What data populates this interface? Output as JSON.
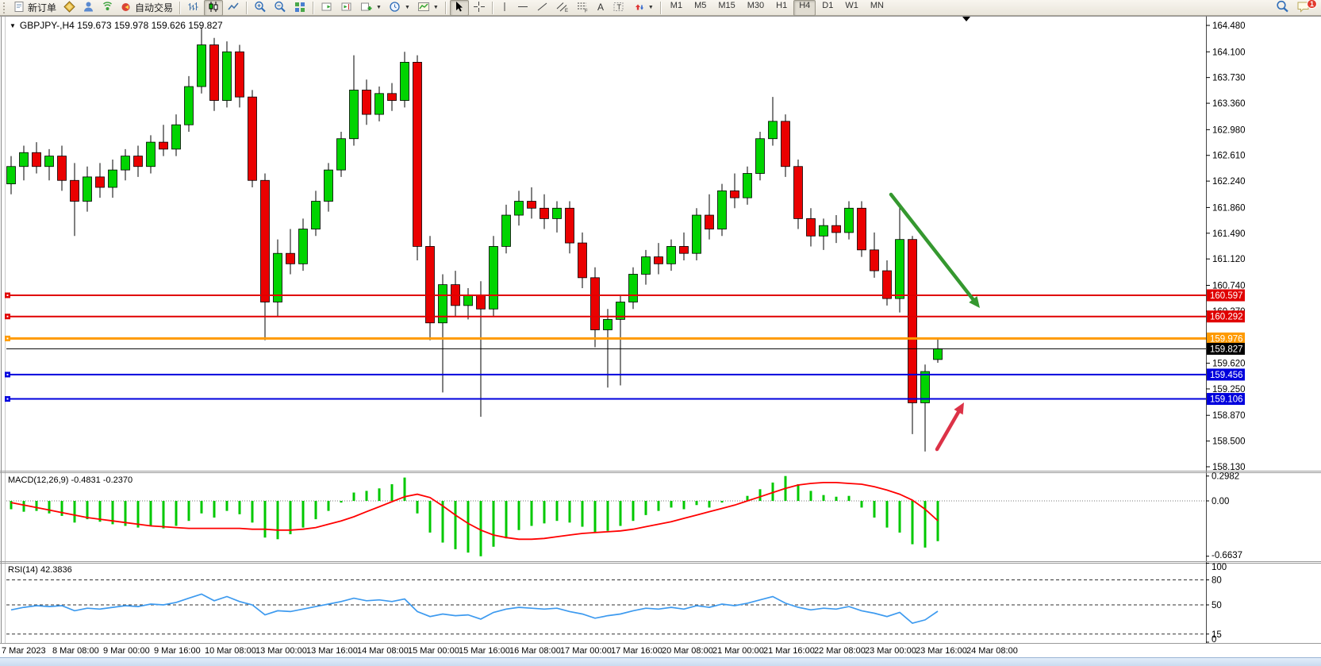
{
  "toolbar": {
    "new_order_label": "新订单",
    "autotrading_label": "自动交易",
    "timeframes": [
      "M1",
      "M5",
      "M15",
      "M30",
      "H1",
      "H4",
      "D1",
      "W1",
      "MN"
    ],
    "active_timeframe": "H4",
    "notification_badge": "1"
  },
  "chart": {
    "title": "GBPJPY-,H4  159.673 159.978 159.626 159.827",
    "symbol": "GBPJPY-",
    "period": "H4",
    "open": "159.673",
    "high": "159.978",
    "low": "159.626",
    "close": "159.827",
    "bull_color": "#00d400",
    "bear_color": "#ea0000",
    "price_ticks": [
      "164.480",
      "164.100",
      "163.730",
      "163.360",
      "162.980",
      "162.610",
      "162.240",
      "161.860",
      "161.490",
      "161.120",
      "160.740",
      "160.370",
      "159.620",
      "159.250",
      "158.870",
      "158.500",
      "158.130"
    ],
    "levels": [
      {
        "price": "160.597",
        "value": 160.597,
        "color": "#e00000",
        "width": 2,
        "handle": true
      },
      {
        "price": "160.292",
        "value": 160.292,
        "color": "#e00000",
        "width": 2,
        "handle": true
      },
      {
        "price": "159.976",
        "value": 159.976,
        "color": "#ff9a00",
        "width": 3,
        "handle": true
      },
      {
        "price": "159.827",
        "value": 159.827,
        "color": "#000000",
        "width": 1,
        "handle": false
      },
      {
        "price": "159.456",
        "value": 159.456,
        "color": "#0000dd",
        "width": 2,
        "handle": true
      },
      {
        "price": "159.106",
        "value": 159.106,
        "color": "#0000dd",
        "width": 2,
        "handle": true
      }
    ],
    "candles": [
      [
        162.2,
        162.6,
        162.05,
        162.45
      ],
      [
        162.45,
        162.75,
        162.25,
        162.65
      ],
      [
        162.65,
        162.8,
        162.35,
        162.45
      ],
      [
        162.45,
        162.7,
        162.25,
        162.6
      ],
      [
        162.6,
        162.75,
        162.1,
        162.25
      ],
      [
        162.25,
        162.5,
        161.45,
        161.95
      ],
      [
        161.95,
        162.45,
        161.8,
        162.3
      ],
      [
        162.3,
        162.5,
        162.0,
        162.15
      ],
      [
        162.15,
        162.55,
        162.0,
        162.4
      ],
      [
        162.4,
        162.7,
        162.25,
        162.6
      ],
      [
        162.6,
        162.75,
        162.3,
        162.45
      ],
      [
        162.45,
        162.9,
        162.35,
        162.8
      ],
      [
        162.8,
        163.05,
        162.6,
        162.7
      ],
      [
        162.7,
        163.2,
        162.6,
        163.05
      ],
      [
        163.05,
        163.75,
        162.95,
        163.6
      ],
      [
        163.6,
        164.45,
        163.5,
        164.2
      ],
      [
        164.2,
        164.3,
        163.25,
        163.4
      ],
      [
        163.4,
        164.25,
        163.3,
        164.1
      ],
      [
        164.1,
        164.2,
        163.3,
        163.45
      ],
      [
        163.45,
        163.55,
        162.15,
        162.25
      ],
      [
        162.25,
        162.35,
        159.95,
        160.5
      ],
      [
        160.5,
        161.4,
        160.3,
        161.2
      ],
      [
        161.2,
        161.55,
        160.9,
        161.05
      ],
      [
        161.05,
        161.7,
        160.95,
        161.55
      ],
      [
        161.55,
        162.1,
        161.45,
        161.95
      ],
      [
        161.95,
        162.5,
        161.8,
        162.4
      ],
      [
        162.4,
        162.95,
        162.3,
        162.85
      ],
      [
        162.85,
        164.05,
        162.75,
        163.55
      ],
      [
        163.55,
        163.7,
        163.05,
        163.2
      ],
      [
        163.2,
        163.6,
        163.1,
        163.5
      ],
      [
        163.5,
        163.65,
        163.25,
        163.4
      ],
      [
        163.4,
        164.1,
        163.3,
        163.95
      ],
      [
        163.95,
        164.05,
        161.1,
        161.3
      ],
      [
        161.3,
        161.45,
        159.95,
        160.2
      ],
      [
        160.2,
        160.9,
        159.2,
        160.75
      ],
      [
        160.75,
        160.95,
        160.3,
        160.45
      ],
      [
        160.45,
        160.7,
        160.25,
        160.6
      ],
      [
        160.6,
        160.8,
        158.85,
        160.4
      ],
      [
        160.4,
        161.45,
        160.3,
        161.3
      ],
      [
        161.3,
        161.9,
        161.2,
        161.75
      ],
      [
        161.75,
        162.1,
        161.6,
        161.95
      ],
      [
        161.95,
        162.15,
        161.7,
        161.85
      ],
      [
        161.85,
        162.05,
        161.55,
        161.7
      ],
      [
        161.7,
        161.95,
        161.5,
        161.85
      ],
      [
        161.85,
        161.95,
        161.2,
        161.35
      ],
      [
        161.35,
        161.5,
        160.7,
        160.85
      ],
      [
        160.85,
        161.0,
        159.85,
        160.1
      ],
      [
        160.1,
        160.4,
        159.27,
        160.25
      ],
      [
        160.25,
        160.6,
        159.3,
        160.5
      ],
      [
        160.5,
        161.0,
        160.4,
        160.9
      ],
      [
        160.9,
        161.25,
        160.75,
        161.15
      ],
      [
        161.15,
        161.35,
        160.9,
        161.05
      ],
      [
        161.05,
        161.4,
        160.95,
        161.3
      ],
      [
        161.3,
        161.5,
        161.1,
        161.2
      ],
      [
        161.2,
        161.85,
        161.1,
        161.75
      ],
      [
        161.75,
        162.05,
        161.4,
        161.55
      ],
      [
        161.55,
        162.2,
        161.45,
        162.1
      ],
      [
        162.1,
        162.35,
        161.85,
        162.0
      ],
      [
        162.0,
        162.45,
        161.9,
        162.35
      ],
      [
        162.35,
        162.95,
        162.25,
        162.85
      ],
      [
        162.85,
        163.45,
        162.75,
        163.1
      ],
      [
        163.1,
        163.2,
        162.3,
        162.45
      ],
      [
        162.45,
        162.55,
        161.55,
        161.7
      ],
      [
        161.7,
        161.85,
        161.3,
        161.45
      ],
      [
        161.45,
        161.7,
        161.25,
        161.6
      ],
      [
        161.6,
        161.75,
        161.35,
        161.5
      ],
      [
        161.5,
        161.95,
        161.4,
        161.85
      ],
      [
        161.85,
        161.95,
        161.15,
        161.25
      ],
      [
        161.25,
        161.5,
        160.85,
        160.95
      ],
      [
        160.95,
        161.1,
        160.45,
        160.55
      ],
      [
        160.55,
        161.9,
        160.35,
        161.4
      ],
      [
        161.4,
        161.45,
        158.6,
        159.05
      ],
      [
        159.05,
        159.6,
        158.35,
        159.5
      ],
      [
        159.673,
        159.978,
        159.626,
        159.827
      ]
    ],
    "annotations": {
      "green_arrow": {
        "from": [
          1123,
          245
        ],
        "to": [
          1235,
          388
        ],
        "color": "#35982f"
      },
      "red_arrow": {
        "from": [
          1181,
          566
        ],
        "to": [
          1215,
          507
        ],
        "color": "#dc3247"
      }
    }
  },
  "macd": {
    "label": "MACD(12,26,9) -0.4831 -0.2370",
    "axis_labels": [
      {
        "label": "0.2982",
        "value": 0.2982
      },
      {
        "label": "0.00",
        "value": 0
      },
      {
        "label": "-0.6637",
        "value": -0.6637
      }
    ],
    "histogram_color": "#00c800",
    "signal_color": "#ff0000",
    "histogram": [
      -0.1,
      -0.13,
      -0.12,
      -0.15,
      -0.18,
      -0.26,
      -0.22,
      -0.25,
      -0.28,
      -0.3,
      -0.32,
      -0.3,
      -0.33,
      -0.3,
      -0.24,
      -0.15,
      -0.2,
      -0.12,
      -0.16,
      -0.26,
      -0.44,
      -0.46,
      -0.4,
      -0.32,
      -0.22,
      -0.12,
      -0.02,
      0.1,
      0.12,
      0.15,
      0.2,
      0.28,
      -0.15,
      -0.38,
      -0.5,
      -0.58,
      -0.62,
      -0.6637,
      -0.55,
      -0.45,
      -0.35,
      -0.3,
      -0.27,
      -0.24,
      -0.26,
      -0.31,
      -0.38,
      -0.36,
      -0.3,
      -0.24,
      -0.17,
      -0.12,
      -0.08,
      -0.1,
      -0.05,
      -0.08,
      -0.02,
      0.0,
      0.06,
      0.14,
      0.22,
      0.2982,
      0.2,
      0.12,
      0.07,
      0.05,
      0.06,
      -0.08,
      -0.2,
      -0.32,
      -0.38,
      -0.52,
      -0.56,
      -0.4831
    ],
    "signal": [
      -0.02,
      -0.05,
      -0.08,
      -0.11,
      -0.14,
      -0.17,
      -0.2,
      -0.22,
      -0.24,
      -0.26,
      -0.28,
      -0.3,
      -0.31,
      -0.32,
      -0.33,
      -0.33,
      -0.33,
      -0.33,
      -0.33,
      -0.34,
      -0.34,
      -0.35,
      -0.35,
      -0.34,
      -0.32,
      -0.28,
      -0.24,
      -0.19,
      -0.13,
      -0.07,
      -0.01,
      0.05,
      0.08,
      0.04,
      -0.06,
      -0.17,
      -0.27,
      -0.35,
      -0.41,
      -0.44,
      -0.46,
      -0.46,
      -0.45,
      -0.43,
      -0.41,
      -0.39,
      -0.38,
      -0.37,
      -0.36,
      -0.34,
      -0.31,
      -0.28,
      -0.25,
      -0.21,
      -0.17,
      -0.13,
      -0.09,
      -0.05,
      0.0,
      0.05,
      0.1,
      0.15,
      0.19,
      0.21,
      0.22,
      0.22,
      0.21,
      0.2,
      0.17,
      0.13,
      0.08,
      0.01,
      -0.1,
      -0.237
    ]
  },
  "rsi": {
    "label": "RSI(14) 42.3836",
    "line_color": "#3d9aef",
    "axis_labels": [
      {
        "label": "100",
        "value": 100
      },
      {
        "label": "80",
        "value": 80
      },
      {
        "label": "50",
        "value": 50
      },
      {
        "label": "15",
        "value": 15
      },
      {
        "label": "0",
        "value": 0
      }
    ],
    "dashed_levels": [
      80,
      50,
      15
    ],
    "values": [
      44,
      47,
      49,
      48,
      49,
      43,
      46,
      45,
      47,
      49,
      48,
      51,
      50,
      53,
      58,
      63,
      55,
      60,
      54,
      50,
      38,
      43,
      42,
      45,
      48,
      51,
      54,
      58,
      55,
      56,
      54,
      57,
      42,
      36,
      39,
      37,
      38,
      33,
      41,
      45,
      47,
      46,
      45,
      46,
      42,
      39,
      34,
      37,
      39,
      43,
      46,
      45,
      47,
      45,
      49,
      47,
      51,
      49,
      52,
      56,
      60,
      52,
      47,
      44,
      46,
      45,
      48,
      43,
      40,
      36,
      41,
      28,
      32,
      42.38
    ]
  },
  "time_axis": {
    "labels": [
      "7 Mar 2023",
      "8 Mar 08:00",
      "9 Mar 00:00",
      "9 Mar 16:00",
      "10 Mar 08:00",
      "13 Mar 00:00",
      "13 Mar 16:00",
      "14 Mar 08:00",
      "15 Mar 00:00",
      "15 Mar 16:00",
      "16 Mar 08:00",
      "17 Mar 00:00",
      "17 Mar 16:00",
      "20 Mar 08:00",
      "21 Mar 00:00",
      "21 Mar 16:00",
      "22 Mar 08:00",
      "23 Mar 00:00",
      "23 Mar 16:00",
      "24 Mar 08:00"
    ]
  }
}
